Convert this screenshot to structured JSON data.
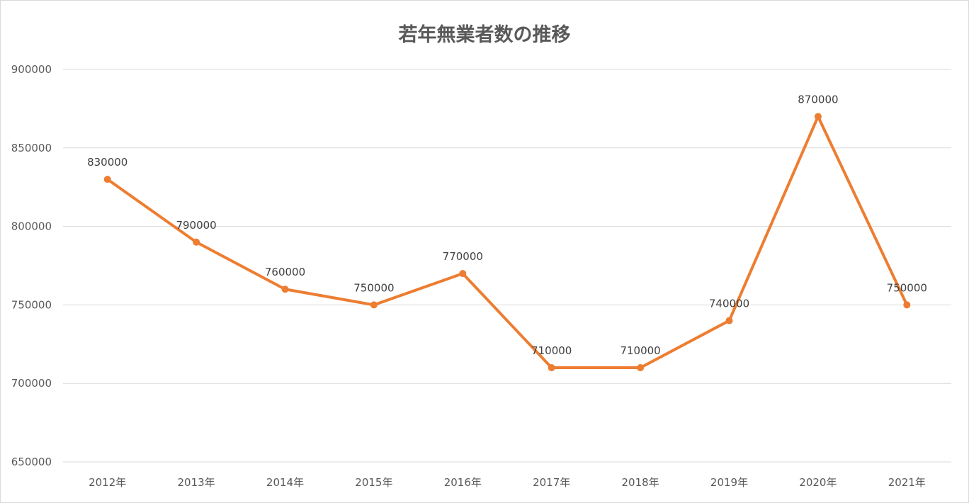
{
  "chart_data": {
    "type": "line",
    "title": "若年無業者数の推移",
    "xlabel": "",
    "ylabel": "",
    "categories": [
      "2012年",
      "2013年",
      "2014年",
      "2015年",
      "2016年",
      "2017年",
      "2018年",
      "2019年",
      "2020年",
      "2021年"
    ],
    "series": [
      {
        "values": [
          830000,
          790000,
          760000,
          750000,
          770000,
          710000,
          710000,
          740000,
          870000,
          750000
        ],
        "color": "#ED7D31"
      }
    ],
    "ylim": [
      650000,
      900000
    ],
    "yticks": [
      "650000",
      "700000",
      "750000",
      "800000",
      "850000",
      "900000"
    ],
    "data_labels": [
      "830000",
      "790000",
      "760000",
      "750000",
      "770000",
      "710000",
      "710000",
      "740000",
      "870000",
      "750000"
    ],
    "grid": true,
    "legend": "none"
  }
}
